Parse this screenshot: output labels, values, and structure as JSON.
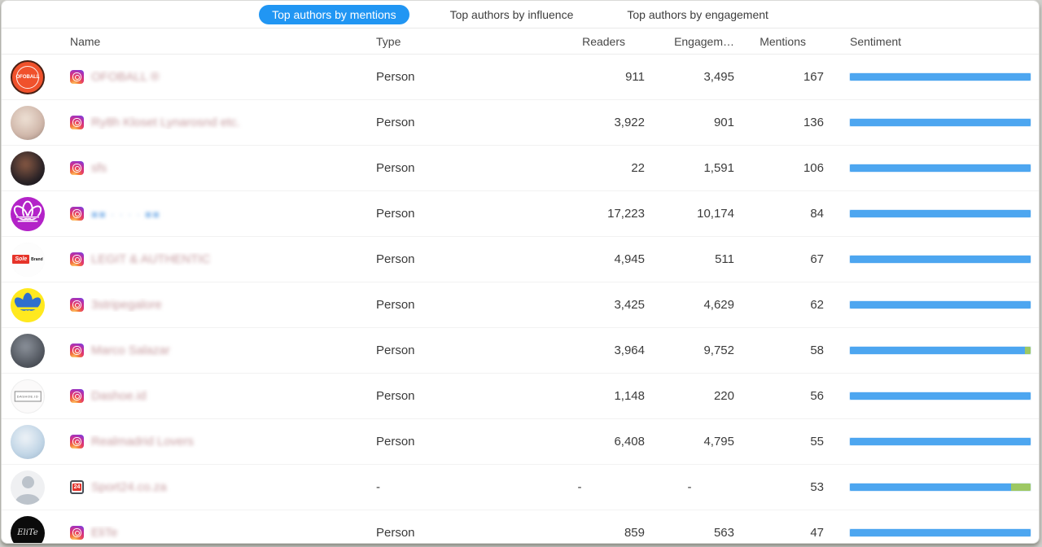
{
  "tabs": [
    {
      "label": "Top authors by mentions",
      "active": true
    },
    {
      "label": "Top authors by influence",
      "active": false
    },
    {
      "label": "Top authors by engagement",
      "active": false
    }
  ],
  "table": {
    "columns": {
      "name": "Name",
      "type": "Type",
      "readers": "Readers",
      "engagement": "Engagem…",
      "mentions": "Mentions",
      "sentiment": "Sentiment"
    }
  },
  "icons": {
    "sport24_label": "24",
    "instagram": "instagram-icon"
  },
  "colors": {
    "accent_blue": "#2196f3",
    "bar_blue": "#4da6f0",
    "bar_green": "#9dc863"
  },
  "rows": [
    {
      "name": "OFOBALL ®",
      "name_variant": "blur",
      "source_icon": "instagram",
      "type": "Person",
      "readers": "911",
      "engagement": "3,495",
      "mentions": "167",
      "sentiment": {
        "neutral_pct": 100,
        "positive_pct": 0
      },
      "avatar": {
        "style": "badge",
        "bg": "#f0512b",
        "border": "#4a2014",
        "text": "OFOBALL",
        "text_color": "#ffffff",
        "text_size": 6,
        "ring": true
      }
    },
    {
      "name": "Ry8h Kloset Lynarosnd etc.",
      "name_variant": "blur",
      "source_icon": "instagram",
      "type": "Person",
      "readers": "3,922",
      "engagement": "901",
      "mentions": "136",
      "sentiment": {
        "neutral_pct": 100,
        "positive_pct": 0
      },
      "avatar": {
        "style": "photo",
        "colors": [
          "#efe2d6",
          "#cdb3a6",
          "#4a3f38"
        ]
      }
    },
    {
      "name": "sfs",
      "name_variant": "blur",
      "source_icon": "instagram",
      "type": "Person",
      "readers": "22",
      "engagement": "1,591",
      "mentions": "106",
      "sentiment": {
        "neutral_pct": 100,
        "positive_pct": 0
      },
      "avatar": {
        "style": "photo",
        "colors": [
          "#8a5a44",
          "#241f24",
          "#0e0d12"
        ]
      }
    },
    {
      "name": "■■ · · · · ■■",
      "name_variant": "blocks",
      "source_icon": "instagram",
      "type": "Person",
      "readers": "17,223",
      "engagement": "10,174",
      "mentions": "84",
      "sentiment": {
        "neutral_pct": 100,
        "positive_pct": 0
      },
      "avatar": {
        "style": "trefoil-outline",
        "bg": "#b323c8",
        "fg": "#ffffff"
      }
    },
    {
      "name": "LEGIT & AUTHENTIC",
      "name_variant": "blur",
      "source_icon": "instagram",
      "type": "Person",
      "readers": "4,945",
      "engagement": "511",
      "mentions": "67",
      "sentiment": {
        "neutral_pct": 100,
        "positive_pct": 0
      },
      "avatar": {
        "style": "sole",
        "box_text": "Sole",
        "side_text": "Brand"
      }
    },
    {
      "name": "3stripegalore",
      "name_variant": "blur",
      "source_icon": "instagram",
      "type": "Person",
      "readers": "3,425",
      "engagement": "4,629",
      "mentions": "62",
      "sentiment": {
        "neutral_pct": 100,
        "positive_pct": 0
      },
      "avatar": {
        "style": "trefoil",
        "bg": "#ffe91f",
        "fg": "#2e6fce"
      }
    },
    {
      "name": "Marco Salazar",
      "name_variant": "blur",
      "source_icon": "instagram",
      "type": "Person",
      "readers": "3,964",
      "engagement": "9,752",
      "mentions": "58",
      "sentiment": {
        "neutral_pct": 97,
        "positive_pct": 3
      },
      "avatar": {
        "style": "photo",
        "colors": [
          "#8d939c",
          "#4f545c",
          "#25272c"
        ]
      }
    },
    {
      "name": "Dashoe.id",
      "name_variant": "blur",
      "source_icon": "instagram",
      "type": "Person",
      "readers": "1,148",
      "engagement": "220",
      "mentions": "56",
      "sentiment": {
        "neutral_pct": 100,
        "positive_pct": 0
      },
      "avatar": {
        "style": "label-box",
        "bg": "#fbfafa",
        "text": "DASHOE.ID"
      }
    },
    {
      "name": "Realmadrid Lovers",
      "name_variant": "blur",
      "source_icon": "instagram",
      "type": "Person",
      "readers": "6,408",
      "engagement": "4,795",
      "mentions": "55",
      "sentiment": {
        "neutral_pct": 100,
        "positive_pct": 0
      },
      "avatar": {
        "style": "photo",
        "colors": [
          "#f0f4f8",
          "#bcd2e4",
          "#8096ad"
        ]
      }
    },
    {
      "name": "Sport24.co.za",
      "name_variant": "blur",
      "source_icon": "sport24",
      "type": "-",
      "readers": "-",
      "engagement": "-",
      "mentions": "53",
      "sentiment": {
        "neutral_pct": 89,
        "positive_pct": 11
      },
      "avatar": {
        "style": "person",
        "bg": "#eff0f2",
        "fg": "#bcc3cb"
      }
    },
    {
      "name": "EliTe",
      "name_variant": "blur",
      "source_icon": "instagram",
      "type": "Person",
      "readers": "859",
      "engagement": "563",
      "mentions": "47",
      "sentiment": {
        "neutral_pct": 100,
        "positive_pct": 0
      },
      "avatar": {
        "style": "badge",
        "bg": "#0b0b0b",
        "text": "EliTe",
        "text_color": "#e4e4e4",
        "text_size": 10,
        "serif": true
      }
    }
  ]
}
